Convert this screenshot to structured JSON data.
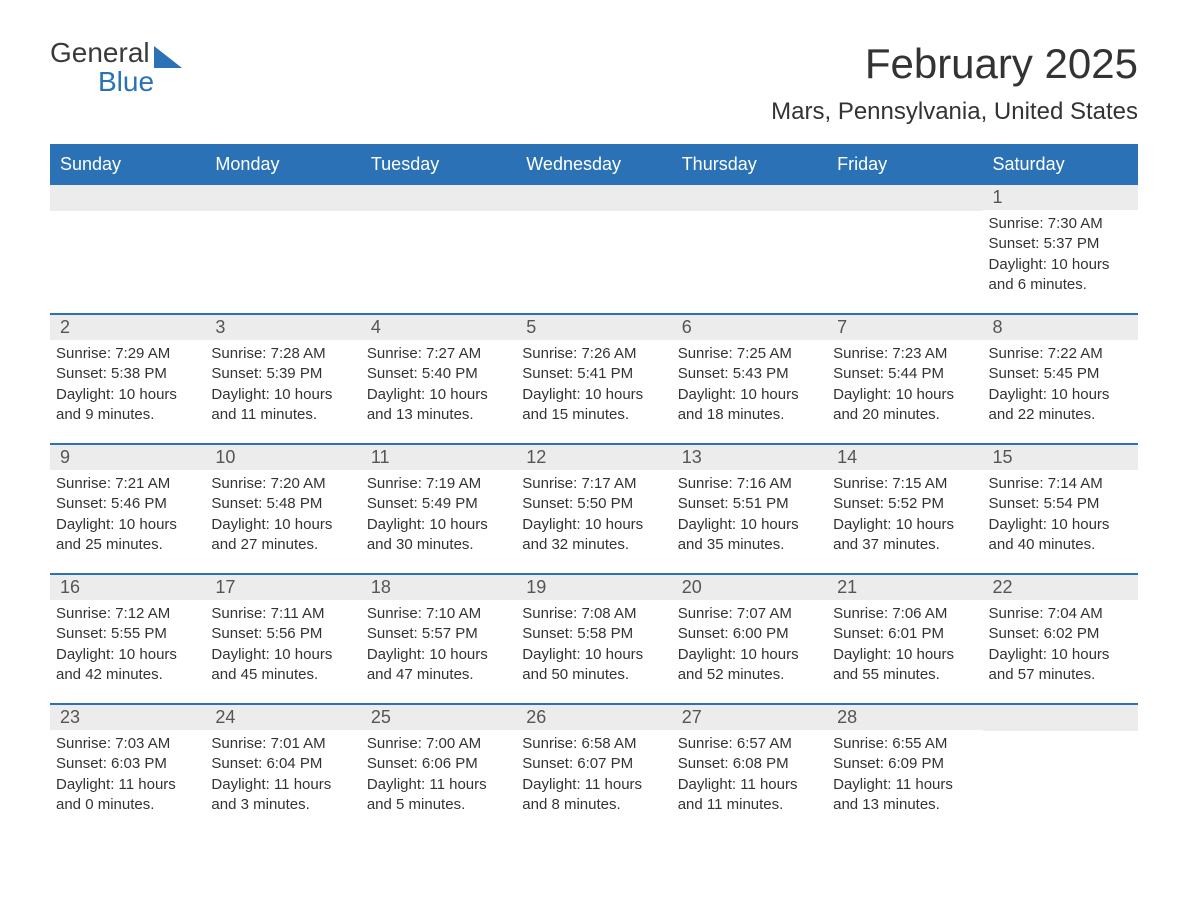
{
  "logo": {
    "general": "General",
    "blue": "Blue"
  },
  "title": "February 2025",
  "location": "Mars, Pennsylvania, United States",
  "colors": {
    "brand": "#2a72b5",
    "header_bg": "#2a72b5",
    "header_text": "#ffffff",
    "daybar_bg": "#ececec",
    "daybar_text": "#555555",
    "body_text": "#333333",
    "page_bg": "#ffffff"
  },
  "layout": {
    "columns": 7,
    "rows": 5,
    "title_fontsize": 42,
    "location_fontsize": 24,
    "weekday_fontsize": 18,
    "daynum_fontsize": 18,
    "content_fontsize": 15
  },
  "weekdays": [
    "Sunday",
    "Monday",
    "Tuesday",
    "Wednesday",
    "Thursday",
    "Friday",
    "Saturday"
  ],
  "weeks": [
    [
      {
        "day": "",
        "sunrise": "",
        "sunset": "",
        "daylight": ""
      },
      {
        "day": "",
        "sunrise": "",
        "sunset": "",
        "daylight": ""
      },
      {
        "day": "",
        "sunrise": "",
        "sunset": "",
        "daylight": ""
      },
      {
        "day": "",
        "sunrise": "",
        "sunset": "",
        "daylight": ""
      },
      {
        "day": "",
        "sunrise": "",
        "sunset": "",
        "daylight": ""
      },
      {
        "day": "",
        "sunrise": "",
        "sunset": "",
        "daylight": ""
      },
      {
        "day": "1",
        "sunrise": "Sunrise: 7:30 AM",
        "sunset": "Sunset: 5:37 PM",
        "daylight": "Daylight: 10 hours and 6 minutes."
      }
    ],
    [
      {
        "day": "2",
        "sunrise": "Sunrise: 7:29 AM",
        "sunset": "Sunset: 5:38 PM",
        "daylight": "Daylight: 10 hours and 9 minutes."
      },
      {
        "day": "3",
        "sunrise": "Sunrise: 7:28 AM",
        "sunset": "Sunset: 5:39 PM",
        "daylight": "Daylight: 10 hours and 11 minutes."
      },
      {
        "day": "4",
        "sunrise": "Sunrise: 7:27 AM",
        "sunset": "Sunset: 5:40 PM",
        "daylight": "Daylight: 10 hours and 13 minutes."
      },
      {
        "day": "5",
        "sunrise": "Sunrise: 7:26 AM",
        "sunset": "Sunset: 5:41 PM",
        "daylight": "Daylight: 10 hours and 15 minutes."
      },
      {
        "day": "6",
        "sunrise": "Sunrise: 7:25 AM",
        "sunset": "Sunset: 5:43 PM",
        "daylight": "Daylight: 10 hours and 18 minutes."
      },
      {
        "day": "7",
        "sunrise": "Sunrise: 7:23 AM",
        "sunset": "Sunset: 5:44 PM",
        "daylight": "Daylight: 10 hours and 20 minutes."
      },
      {
        "day": "8",
        "sunrise": "Sunrise: 7:22 AM",
        "sunset": "Sunset: 5:45 PM",
        "daylight": "Daylight: 10 hours and 22 minutes."
      }
    ],
    [
      {
        "day": "9",
        "sunrise": "Sunrise: 7:21 AM",
        "sunset": "Sunset: 5:46 PM",
        "daylight": "Daylight: 10 hours and 25 minutes."
      },
      {
        "day": "10",
        "sunrise": "Sunrise: 7:20 AM",
        "sunset": "Sunset: 5:48 PM",
        "daylight": "Daylight: 10 hours and 27 minutes."
      },
      {
        "day": "11",
        "sunrise": "Sunrise: 7:19 AM",
        "sunset": "Sunset: 5:49 PM",
        "daylight": "Daylight: 10 hours and 30 minutes."
      },
      {
        "day": "12",
        "sunrise": "Sunrise: 7:17 AM",
        "sunset": "Sunset: 5:50 PM",
        "daylight": "Daylight: 10 hours and 32 minutes."
      },
      {
        "day": "13",
        "sunrise": "Sunrise: 7:16 AM",
        "sunset": "Sunset: 5:51 PM",
        "daylight": "Daylight: 10 hours and 35 minutes."
      },
      {
        "day": "14",
        "sunrise": "Sunrise: 7:15 AM",
        "sunset": "Sunset: 5:52 PM",
        "daylight": "Daylight: 10 hours and 37 minutes."
      },
      {
        "day": "15",
        "sunrise": "Sunrise: 7:14 AM",
        "sunset": "Sunset: 5:54 PM",
        "daylight": "Daylight: 10 hours and 40 minutes."
      }
    ],
    [
      {
        "day": "16",
        "sunrise": "Sunrise: 7:12 AM",
        "sunset": "Sunset: 5:55 PM",
        "daylight": "Daylight: 10 hours and 42 minutes."
      },
      {
        "day": "17",
        "sunrise": "Sunrise: 7:11 AM",
        "sunset": "Sunset: 5:56 PM",
        "daylight": "Daylight: 10 hours and 45 minutes."
      },
      {
        "day": "18",
        "sunrise": "Sunrise: 7:10 AM",
        "sunset": "Sunset: 5:57 PM",
        "daylight": "Daylight: 10 hours and 47 minutes."
      },
      {
        "day": "19",
        "sunrise": "Sunrise: 7:08 AM",
        "sunset": "Sunset: 5:58 PM",
        "daylight": "Daylight: 10 hours and 50 minutes."
      },
      {
        "day": "20",
        "sunrise": "Sunrise: 7:07 AM",
        "sunset": "Sunset: 6:00 PM",
        "daylight": "Daylight: 10 hours and 52 minutes."
      },
      {
        "day": "21",
        "sunrise": "Sunrise: 7:06 AM",
        "sunset": "Sunset: 6:01 PM",
        "daylight": "Daylight: 10 hours and 55 minutes."
      },
      {
        "day": "22",
        "sunrise": "Sunrise: 7:04 AM",
        "sunset": "Sunset: 6:02 PM",
        "daylight": "Daylight: 10 hours and 57 minutes."
      }
    ],
    [
      {
        "day": "23",
        "sunrise": "Sunrise: 7:03 AM",
        "sunset": "Sunset: 6:03 PM",
        "daylight": "Daylight: 11 hours and 0 minutes."
      },
      {
        "day": "24",
        "sunrise": "Sunrise: 7:01 AM",
        "sunset": "Sunset: 6:04 PM",
        "daylight": "Daylight: 11 hours and 3 minutes."
      },
      {
        "day": "25",
        "sunrise": "Sunrise: 7:00 AM",
        "sunset": "Sunset: 6:06 PM",
        "daylight": "Daylight: 11 hours and 5 minutes."
      },
      {
        "day": "26",
        "sunrise": "Sunrise: 6:58 AM",
        "sunset": "Sunset: 6:07 PM",
        "daylight": "Daylight: 11 hours and 8 minutes."
      },
      {
        "day": "27",
        "sunrise": "Sunrise: 6:57 AM",
        "sunset": "Sunset: 6:08 PM",
        "daylight": "Daylight: 11 hours and 11 minutes."
      },
      {
        "day": "28",
        "sunrise": "Sunrise: 6:55 AM",
        "sunset": "Sunset: 6:09 PM",
        "daylight": "Daylight: 11 hours and 13 minutes."
      },
      {
        "day": "",
        "sunrise": "",
        "sunset": "",
        "daylight": ""
      }
    ]
  ]
}
